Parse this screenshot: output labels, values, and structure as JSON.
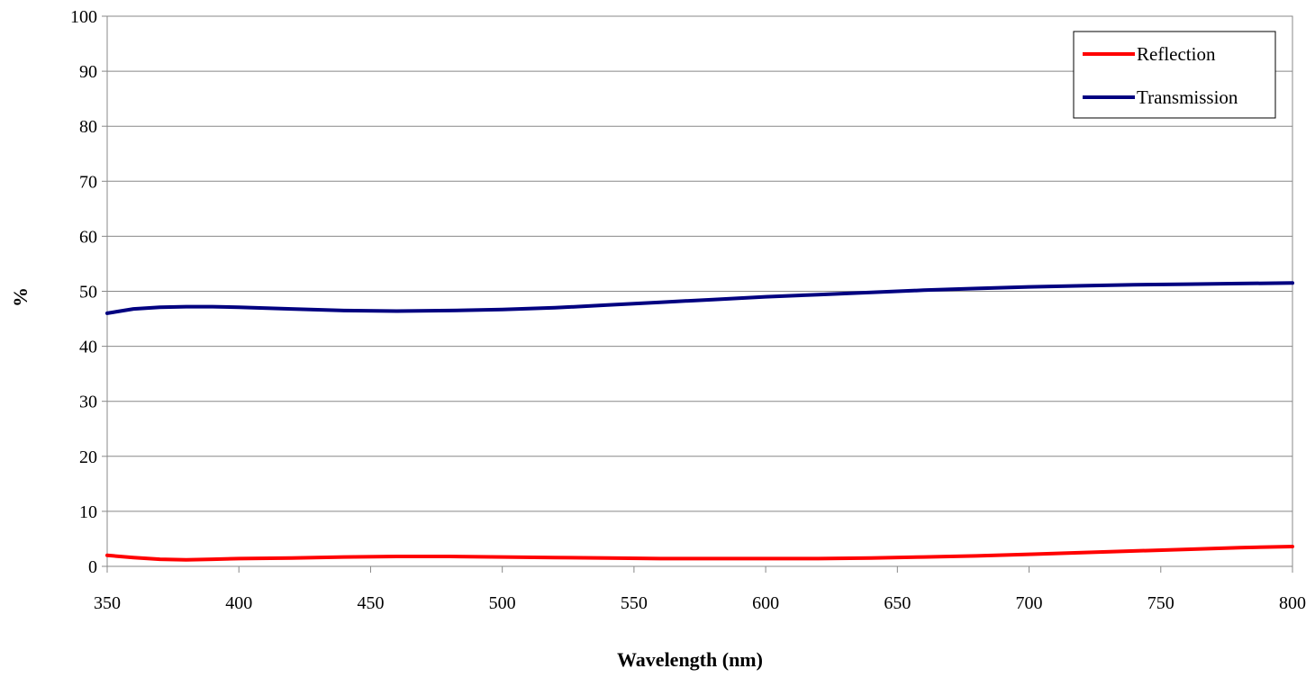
{
  "chart_data": {
    "type": "line",
    "xlabel": "Wavelength (nm)",
    "ylabel": "%",
    "xlim": [
      350,
      800
    ],
    "ylim": [
      0,
      100
    ],
    "x_ticks": [
      350,
      400,
      450,
      500,
      550,
      600,
      650,
      700,
      750,
      800
    ],
    "y_ticks": [
      0,
      10,
      20,
      30,
      40,
      50,
      60,
      70,
      80,
      90,
      100
    ],
    "grid": "horizontal",
    "legend_position": "top-right",
    "series": [
      {
        "name": "Reflection",
        "color": "#ff0000",
        "x": [
          350,
          360,
          370,
          380,
          390,
          400,
          420,
          440,
          460,
          480,
          500,
          520,
          540,
          560,
          580,
          600,
          620,
          640,
          660,
          680,
          700,
          720,
          740,
          760,
          780,
          800
        ],
        "values": [
          2.0,
          1.6,
          1.3,
          1.2,
          1.3,
          1.4,
          1.5,
          1.7,
          1.8,
          1.8,
          1.7,
          1.6,
          1.5,
          1.4,
          1.4,
          1.4,
          1.4,
          1.5,
          1.7,
          1.9,
          2.2,
          2.5,
          2.8,
          3.1,
          3.4,
          3.6
        ]
      },
      {
        "name": "Transmission",
        "color": "#000080",
        "x": [
          350,
          360,
          370,
          380,
          390,
          400,
          420,
          440,
          460,
          480,
          500,
          520,
          540,
          560,
          580,
          600,
          620,
          640,
          660,
          680,
          700,
          720,
          740,
          760,
          780,
          800
        ],
        "values": [
          46.0,
          46.8,
          47.1,
          47.2,
          47.2,
          47.1,
          46.8,
          46.5,
          46.4,
          46.5,
          46.7,
          47.0,
          47.5,
          48.0,
          48.5,
          49.0,
          49.4,
          49.8,
          50.2,
          50.5,
          50.8,
          51.0,
          51.2,
          51.3,
          51.4,
          51.5
        ]
      }
    ]
  }
}
